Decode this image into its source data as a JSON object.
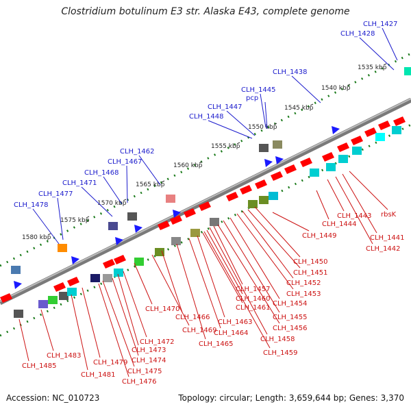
{
  "title": "Clostridium botulinum E3 str. Alaska E43, complete genome",
  "accession": "Accession: NC_010723",
  "summary": "Topology: circular; Length: 3,659,644 bp; Genes: 3,370",
  "kbp_ticks": [
    "1535 kbp",
    "1540 kbp",
    "1545 kbp",
    "1550 kbp",
    "1555 kbp",
    "1560 kbp",
    "1565 kbp",
    "1570 kbp",
    "1575 kbp",
    "1580 kbp"
  ],
  "top_labels": [
    "CLH_1427",
    "CLH_1428",
    "CLH_1438",
    "CLH_1445",
    "pcp",
    "CLH_1447",
    "CLH_1448",
    "CLH_1462",
    "CLH_1467",
    "CLH_1468",
    "CLH_1471",
    "CLH_1477",
    "CLH_1478"
  ],
  "bottom_labels": [
    "rbsK",
    "CLH_1441",
    "CLH_1442",
    "CLH_1443",
    "CLH_1444",
    "CLH_1449",
    "CLH_1450",
    "CLH_1451",
    "CLH_1452",
    "CLH_1453",
    "CLH_1454",
    "CLH_1455",
    "CLH_1456",
    "CLH_1457",
    "CLH_1458",
    "CLH_1459",
    "CLH_1460",
    "CLH_1461",
    "CLH_1463",
    "CLH_1464",
    "CLH_1465",
    "CLH_1466",
    "CLH_1469",
    "CLH_1470",
    "CLH_1472",
    "CLH_1473",
    "CLH_1474",
    "CLH_1475",
    "CLH_1476",
    "CLH_1479",
    "CLH_1481",
    "CLH_1483",
    "CLH_1485"
  ],
  "colors": {
    "top_label": "#1a1acc",
    "bottom_label": "#cc1111",
    "backbone": "#808080",
    "tick": "#1a7a1a"
  }
}
